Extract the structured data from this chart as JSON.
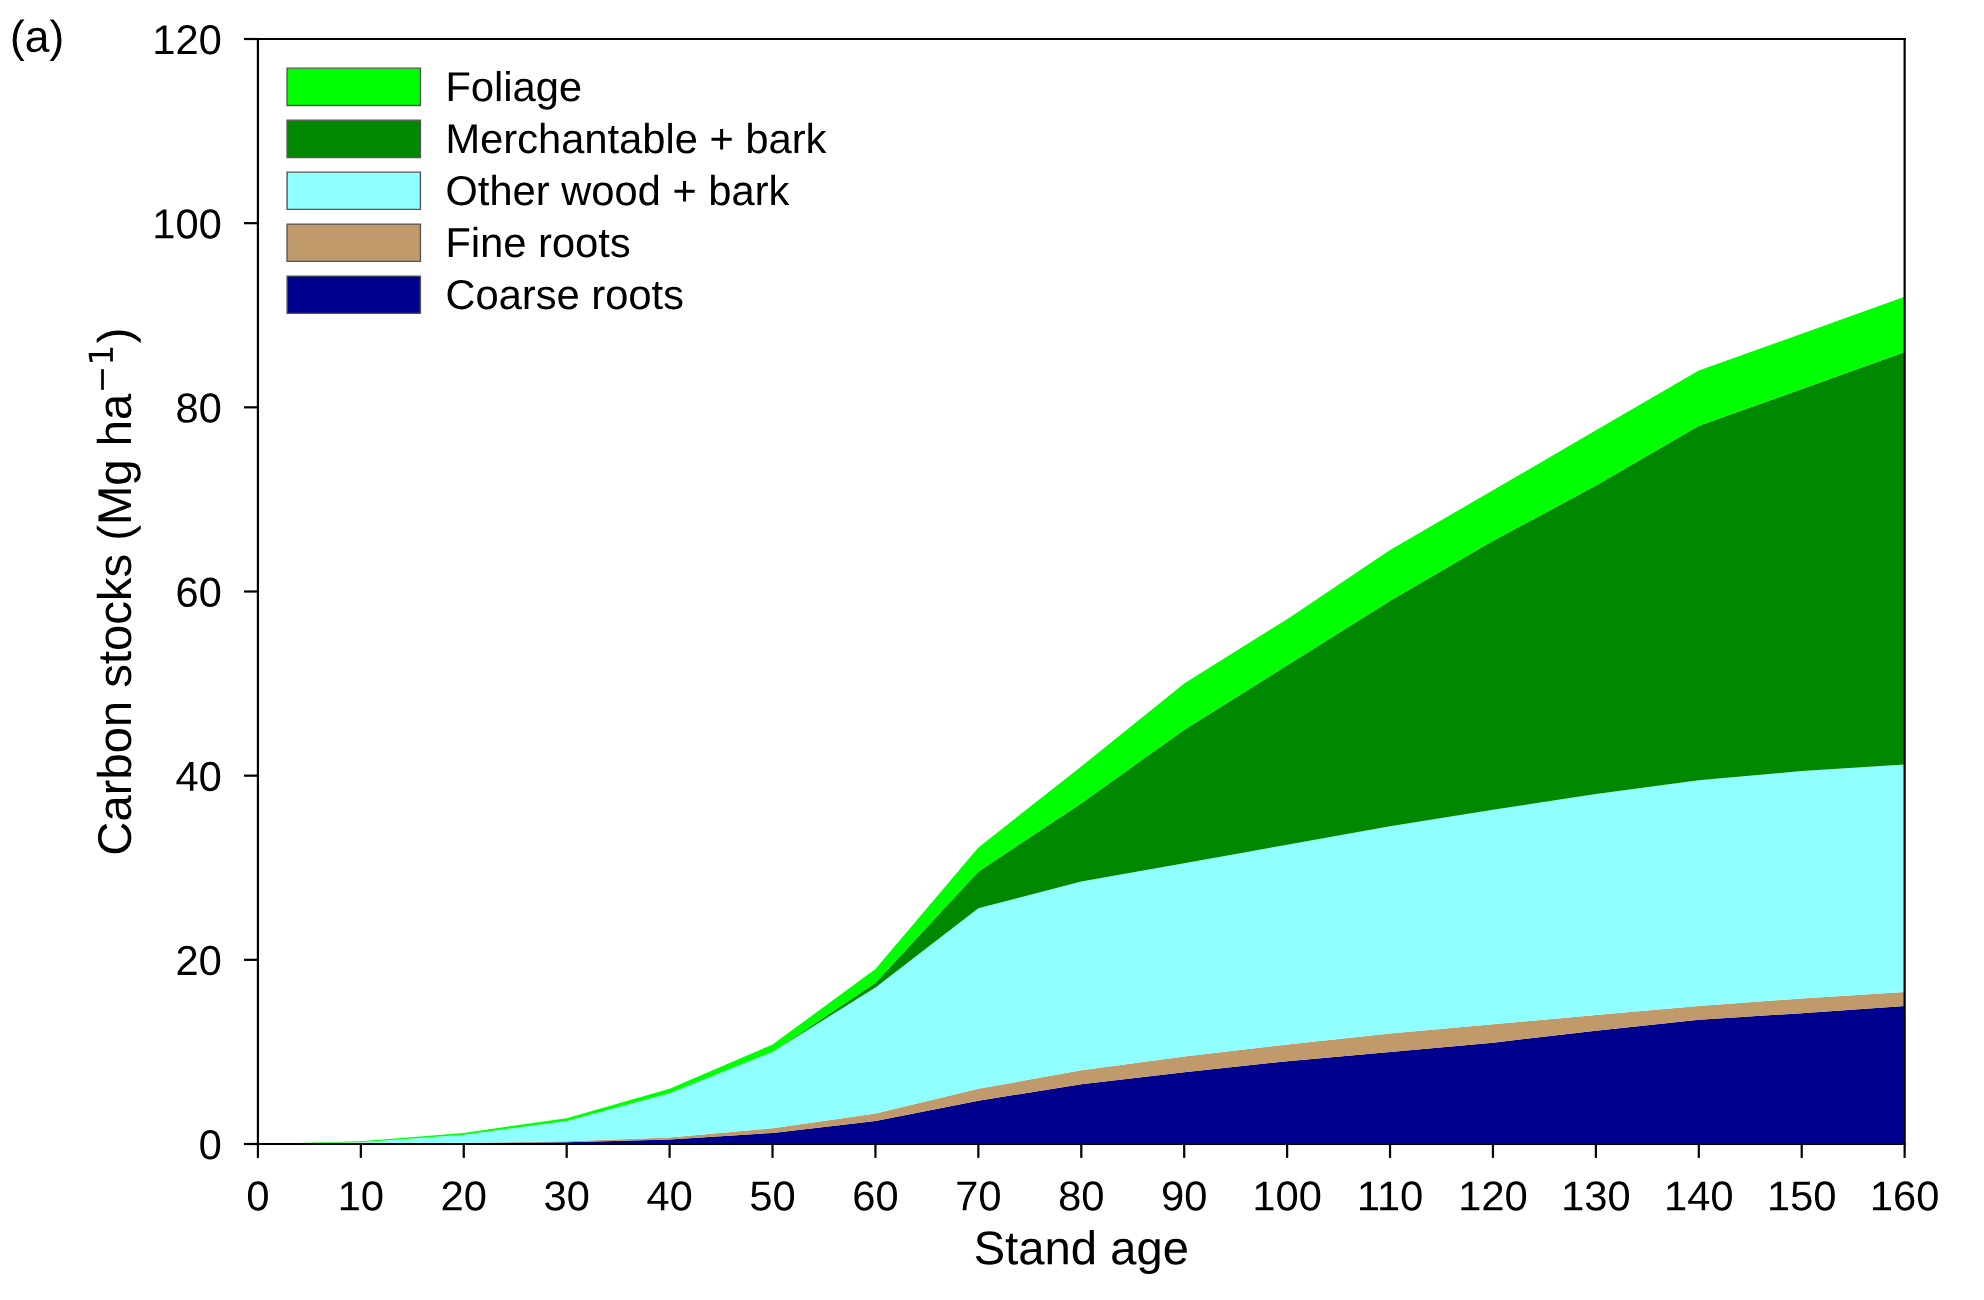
{
  "chart_data": {
    "type": "area",
    "stacked": true,
    "xlabel": "Stand age",
    "ylabel": "Carbon stocks (Mg ha$^{−1}$)",
    "annotations": [
      "(a)"
    ],
    "x": [
      0,
      10,
      20,
      30,
      40,
      50,
      60,
      70,
      80,
      90,
      100,
      110,
      120,
      130,
      140,
      150,
      160
    ],
    "series": [
      {
        "name": "Coarse roots",
        "color": "#00008f",
        "values": [
          0,
          0,
          0.1,
          0.2,
          0.5,
          1.2,
          2.5,
          4.7,
          6.5,
          7.8,
          9,
          10,
          11,
          12.3,
          13.5,
          14.2,
          15
        ]
      },
      {
        "name": "Fine roots",
        "color": "#c09a6b",
        "values": [
          0,
          0,
          0,
          0.1,
          0.2,
          0.5,
          0.8,
          1.3,
          1.5,
          1.7,
          1.8,
          2,
          2,
          1.7,
          1.5,
          1.6,
          1.5
        ]
      },
      {
        "name": "Other wood + bark",
        "color": "#90ffff",
        "values": [
          0,
          0.2,
          0.9,
          2.2,
          4.8,
          8.3,
          13.7,
          19.6,
          20.5,
          21,
          21.7,
          22.5,
          23.3,
          24,
          24.5,
          24.7,
          24.7
        ]
      },
      {
        "name": "Merchantable + bark",
        "color": "#008800",
        "values": [
          0,
          0,
          0,
          0,
          0,
          0,
          0.5,
          4,
          8.5,
          14.5,
          19.5,
          24.5,
          29.2,
          33.5,
          38.5,
          41.5,
          44.8
        ]
      },
      {
        "name": "Foliage",
        "color": "#00ff00",
        "values": [
          0,
          0.1,
          0.2,
          0.3,
          0.5,
          0.8,
          1.5,
          2.6,
          4,
          5,
          5,
          5.5,
          5.5,
          6,
          6,
          6,
          6
        ]
      }
    ],
    "xlim": [
      0,
      160
    ],
    "xticks": [
      0,
      10,
      20,
      30,
      40,
      50,
      60,
      70,
      80,
      90,
      100,
      110,
      120,
      130,
      140,
      150,
      160
    ],
    "ylim": [
      0,
      120
    ],
    "yticks": [
      0,
      20,
      40,
      60,
      80,
      100,
      120
    ],
    "grid": false,
    "legend": "top left"
  }
}
